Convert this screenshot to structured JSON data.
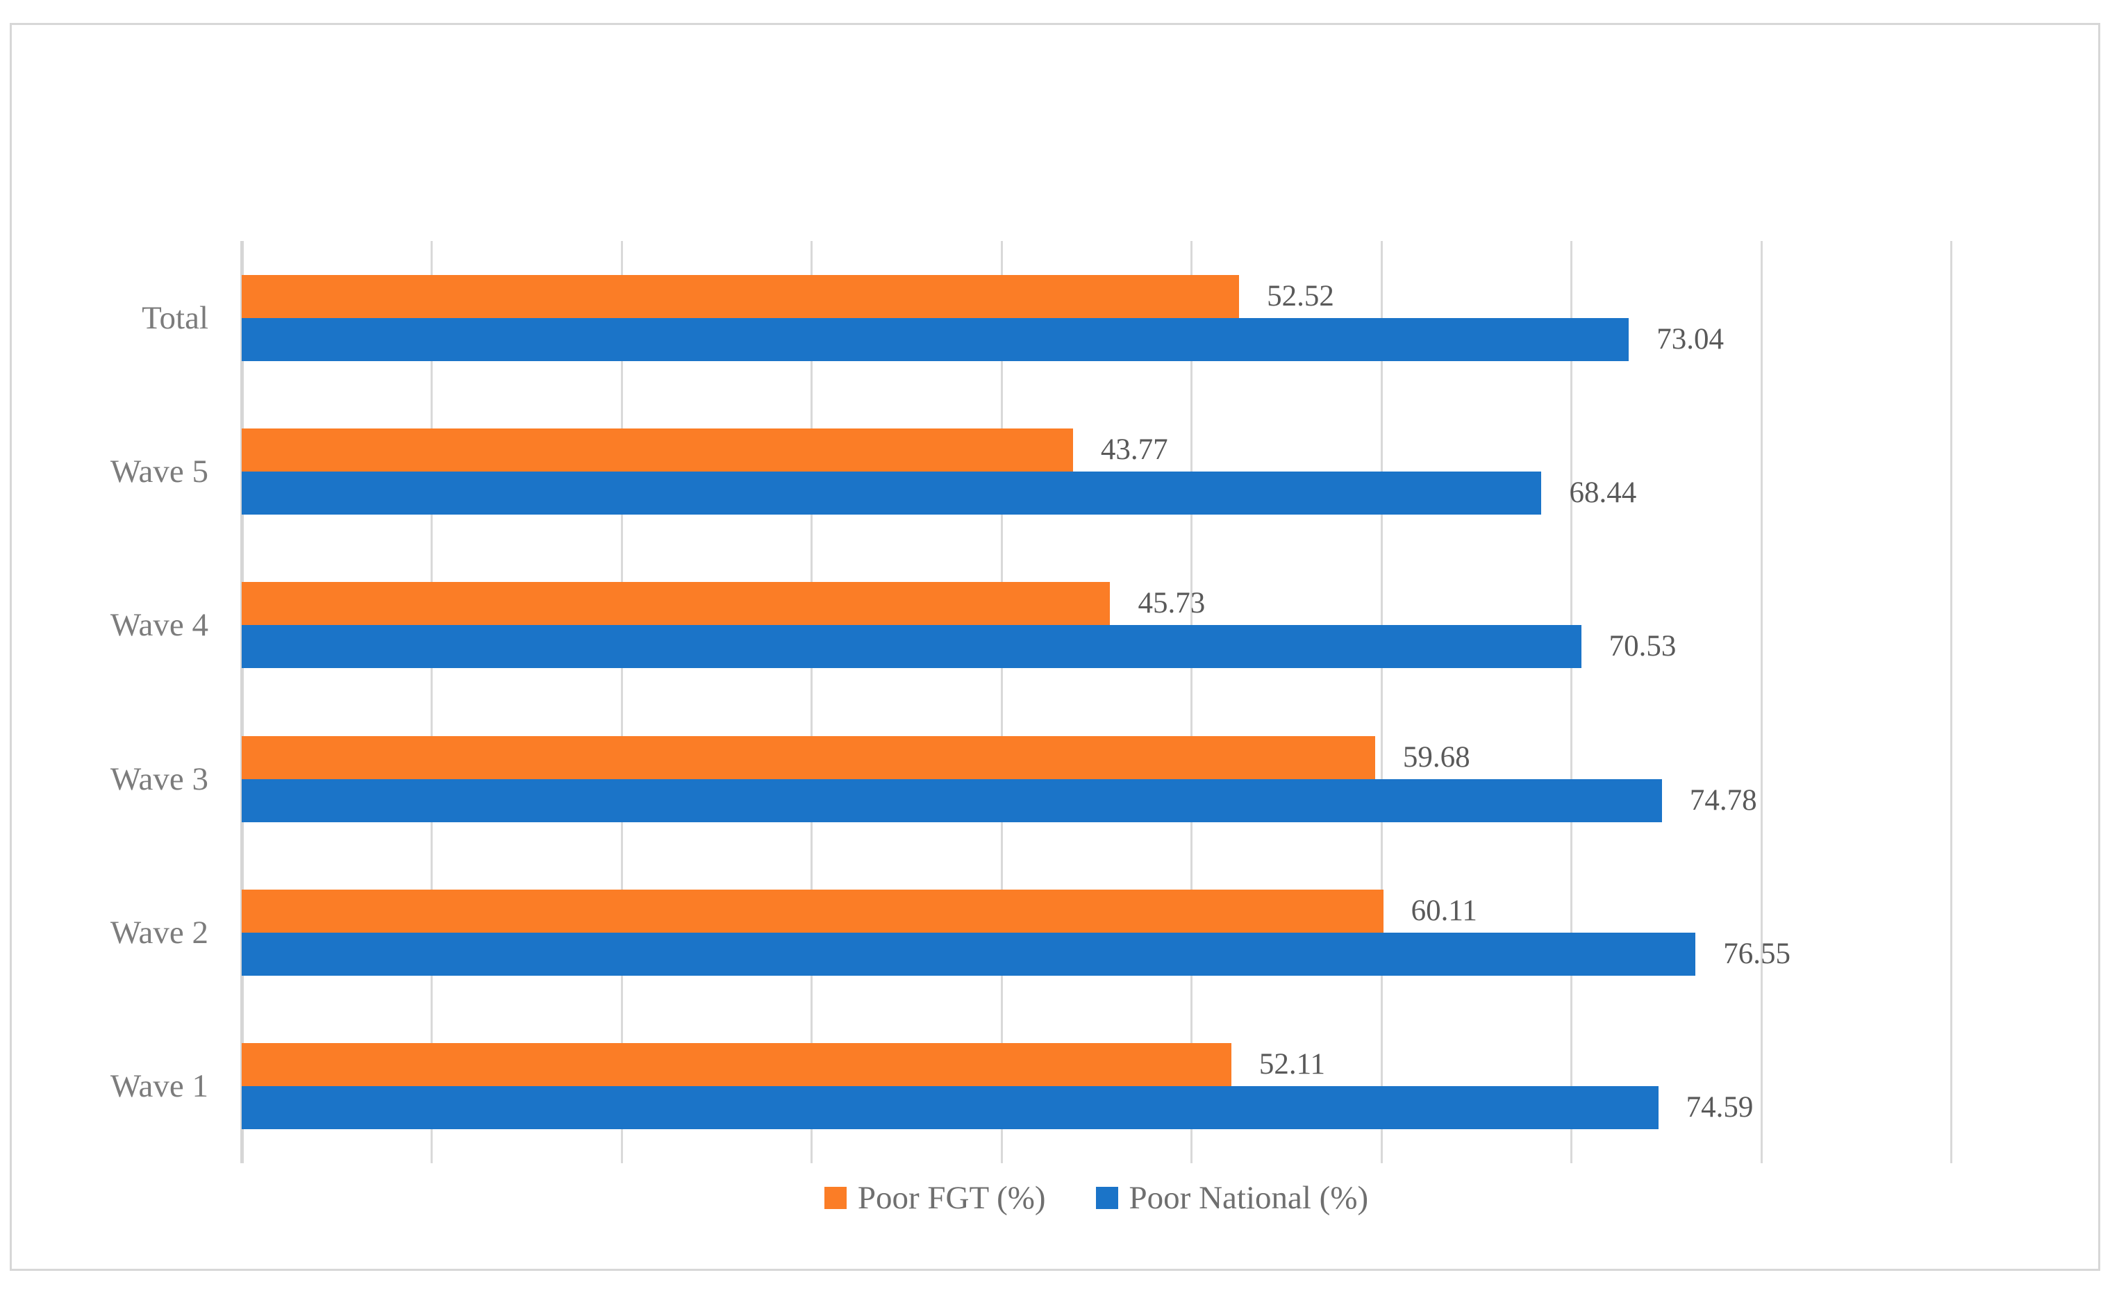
{
  "figure": {
    "kind": "static-research-figure",
    "border_color": "#d7d7d7",
    "background": "#ffffff"
  },
  "chart_data": {
    "type": "bar",
    "orientation": "horizontal",
    "title": "",
    "xlabel": "",
    "ylabel": "",
    "categories": [
      "Total",
      "Wave 5",
      "Wave 4",
      "Wave 3",
      "Wave 2",
      "Wave 1"
    ],
    "series": [
      {
        "name": "Poor FGT (%)",
        "color": "#fb7d26",
        "values": [
          52.52,
          43.77,
          45.73,
          59.68,
          60.11,
          52.11
        ]
      },
      {
        "name": "Poor National (%)",
        "color": "#1b74c8",
        "values": [
          73.04,
          68.44,
          70.53,
          74.78,
          76.55,
          74.59
        ]
      }
    ],
    "xlim": [
      0,
      90
    ],
    "gridline_interval": 10,
    "grid": true,
    "x_tick_labels_visible": false,
    "data_labels": true,
    "data_label_color": "#595959",
    "category_label_color": "#7c7c7c",
    "gridline_color": "#d9d9d9",
    "legend_position": "bottom"
  }
}
